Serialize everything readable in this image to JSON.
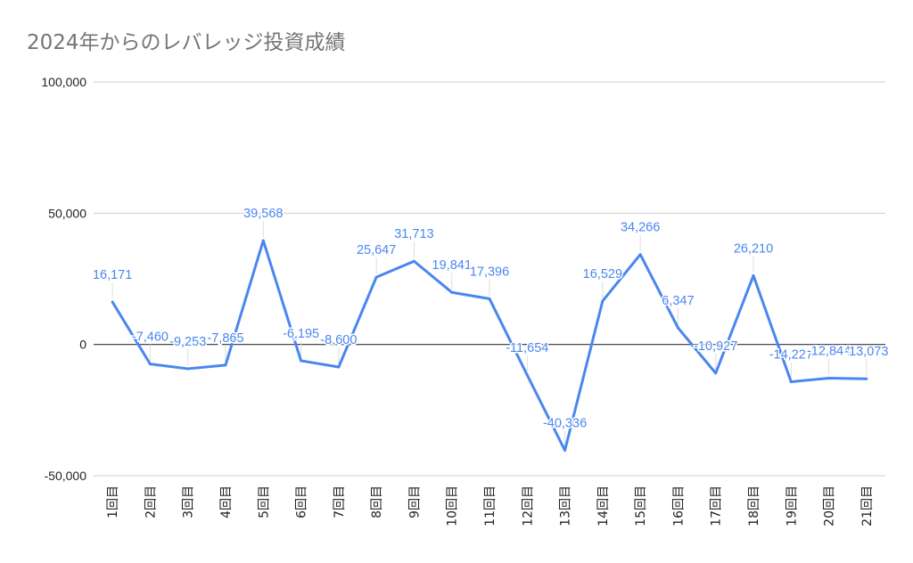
{
  "chart_data": {
    "type": "line",
    "title": "2024年からのレバレッジ投資成績",
    "xlabel": "",
    "ylabel": "",
    "ylim": [
      -50000,
      100000
    ],
    "yticks": [
      -50000,
      0,
      50000,
      100000
    ],
    "ytick_labels": [
      "-50,000",
      "0",
      "50,000",
      "100,000"
    ],
    "grid": true,
    "categories": [
      "1回目",
      "2回目",
      "3回目",
      "4回目",
      "5回目",
      "6回目",
      "7回目",
      "8回目",
      "9回目",
      "10回目",
      "11回目",
      "12回目",
      "13回目",
      "14回目",
      "15回目",
      "16回目",
      "17回目",
      "18回目",
      "19回目",
      "20回目",
      "21回目"
    ],
    "values": [
      16171,
      -7460,
      -9253,
      -7865,
      39568,
      -6195,
      -8600,
      25647,
      31713,
      19841,
      17396,
      -11654,
      -40336,
      16529,
      34266,
      6347,
      -10927,
      26210,
      -14227,
      -12844,
      -13073
    ],
    "data_labels": [
      "16,171",
      "-7,460",
      "-9,253",
      "-7,865",
      "39,568",
      "-6,195",
      "-8,600",
      "25,647",
      "31,713",
      "19,841",
      "17,396",
      "-11,654",
      "-40,336",
      "16,529",
      "34,266",
      "6,347",
      "-10,927",
      "26,210",
      "-14,227",
      "-12,844",
      "-13,073"
    ],
    "colors": {
      "line": "#4a86f0",
      "grid": "#cccccc",
      "zero": "#333333"
    }
  }
}
